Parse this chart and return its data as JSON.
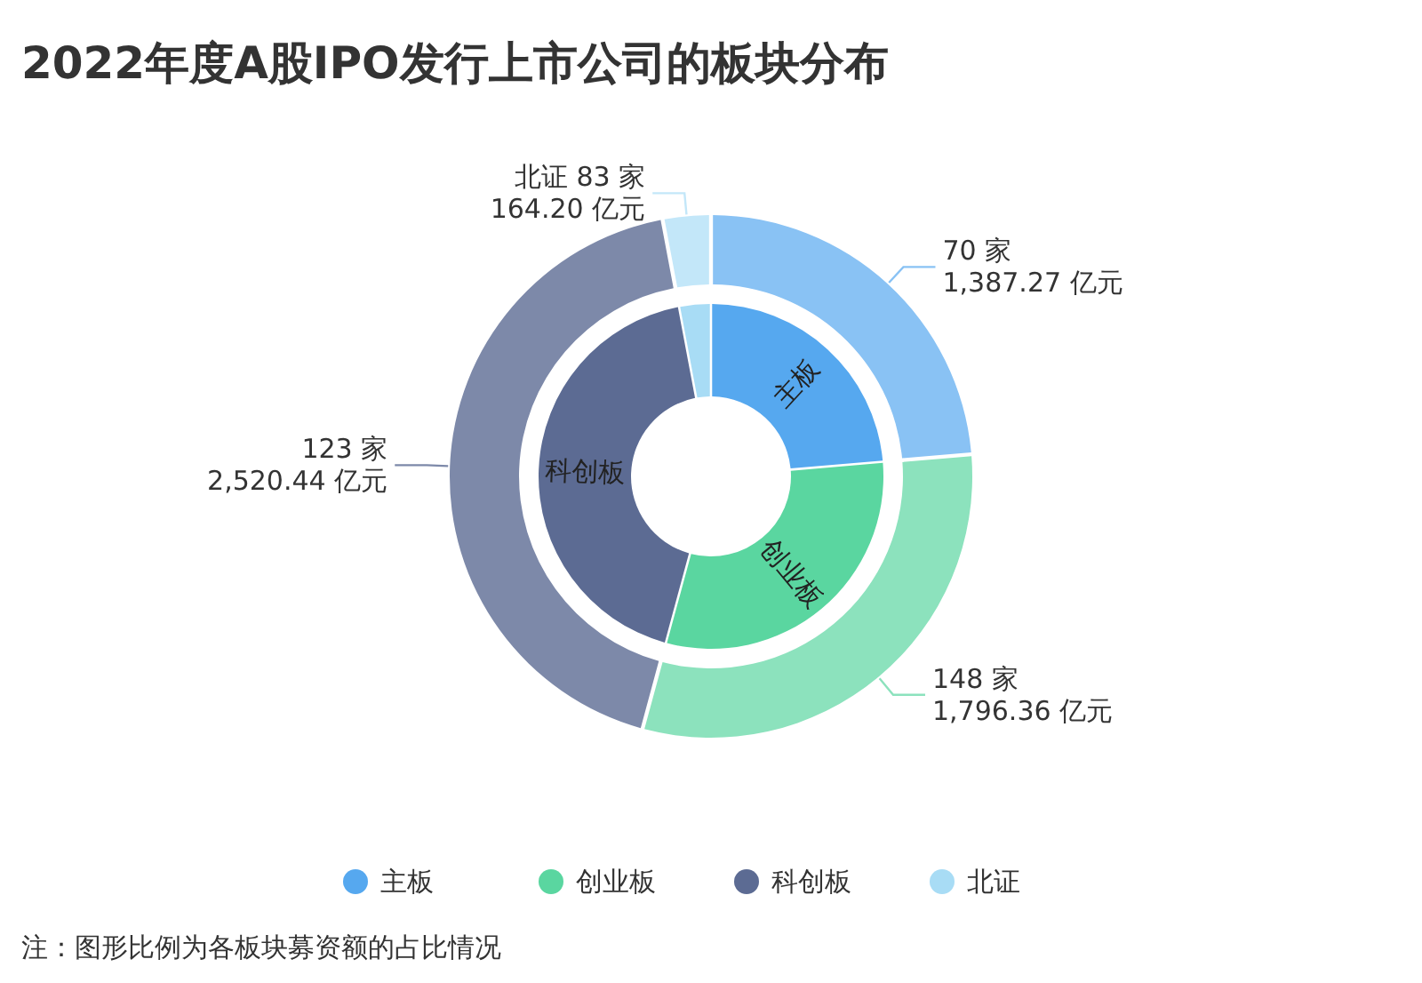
{
  "chart_data": {
    "type": "donut",
    "title": "2022年度A股IPO发行上市公司的板块分布",
    "categories": [
      "主板",
      "创业板",
      "科创板",
      "北证"
    ],
    "series": [
      {
        "values": [
          1387.27,
          1796.36,
          2520.44,
          164.2
        ],
        "colors": [
          "#89c2f4",
          "#8ce2bd",
          "#7d89a9",
          "#c3e7f9"
        ],
        "value_labels": [
          "70 家\n1,387.27 亿元",
          "148 家\n1,796.36 亿元",
          "123 家\n2,520.44 亿元",
          "北证 83 家\n164.20 亿元"
        ]
      },
      {
        "values": [
          23.64,
          30.61,
          42.95,
          2.8
        ],
        "colors": [
          "#56a8ef",
          "#5ad6a0",
          "#5c6b93",
          "#a8dcf5"
        ]
      }
    ],
    "legend": "bottom",
    "annotations": [
      "注：图形比例为各板块募资额的占比情况"
    ]
  }
}
